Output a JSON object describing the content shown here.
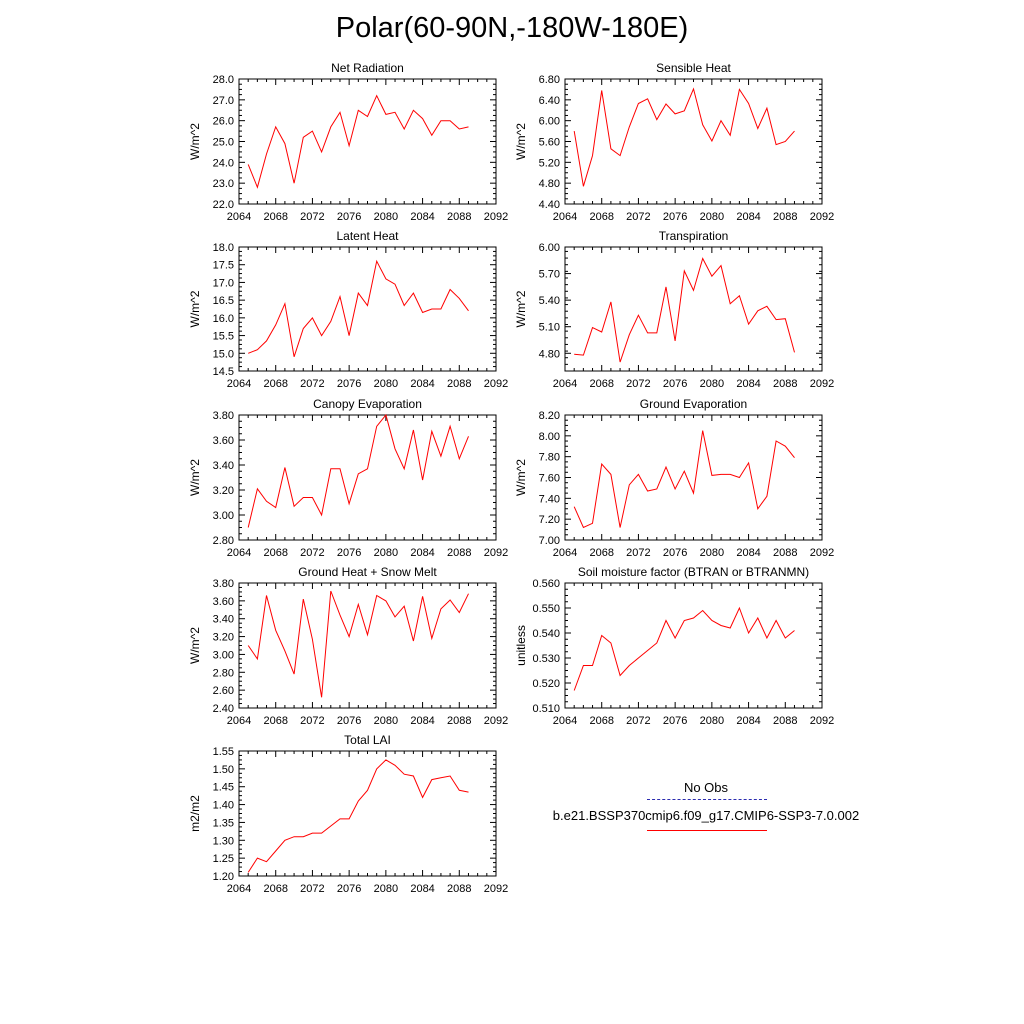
{
  "title": "Polar(60-90N,-180W-180E)",
  "legend": {
    "obs_label": "No Obs",
    "obs_color": "#2b2bb0",
    "case_label": "b.e21.BSSP370cmip6.f09_g17.CMIP6-SSP3-7.0.002",
    "case_color": "#ff0000"
  },
  "chart_data": [
    {
      "type": "line",
      "title": "Net Radiation",
      "ylabel": "W/m^2",
      "xlim": [
        2064,
        2092
      ],
      "ylim": [
        22.0,
        28.0
      ],
      "xticks": [
        "2064",
        "2068",
        "2072",
        "2076",
        "2080",
        "2084",
        "2088",
        "2092"
      ],
      "yticks": [
        "22.0",
        "23.0",
        "24.0",
        "25.0",
        "26.0",
        "27.0",
        "28.0"
      ],
      "x": [
        2065,
        2066,
        2067,
        2068,
        2069,
        2070,
        2071,
        2072,
        2073,
        2074,
        2075,
        2076,
        2077,
        2078,
        2079,
        2080,
        2081,
        2082,
        2083,
        2084,
        2085,
        2086,
        2087,
        2088,
        2089
      ],
      "values": [
        23.9,
        22.8,
        24.4,
        25.7,
        24.9,
        23.0,
        25.2,
        25.5,
        24.5,
        25.7,
        26.4,
        24.8,
        26.5,
        26.2,
        27.2,
        26.3,
        26.4,
        25.6,
        26.5,
        26.1,
        25.3,
        26.0,
        26.0,
        25.6,
        25.7
      ]
    },
    {
      "type": "line",
      "title": "Sensible Heat",
      "ylabel": "W/m^2",
      "xlim": [
        2064,
        2092
      ],
      "ylim": [
        4.4,
        6.8
      ],
      "xticks": [
        "2064",
        "2068",
        "2072",
        "2076",
        "2080",
        "2084",
        "2088",
        "2092"
      ],
      "yticks": [
        "4.40",
        "4.80",
        "5.20",
        "5.60",
        "6.00",
        "6.40",
        "6.80"
      ],
      "x": [
        2065,
        2066,
        2067,
        2068,
        2069,
        2070,
        2071,
        2072,
        2073,
        2074,
        2075,
        2076,
        2077,
        2078,
        2079,
        2080,
        2081,
        2082,
        2083,
        2084,
        2085,
        2086,
        2087,
        2088,
        2089
      ],
      "values": [
        5.8,
        4.74,
        5.33,
        6.58,
        5.46,
        5.33,
        5.88,
        6.33,
        6.42,
        6.02,
        6.32,
        6.13,
        6.19,
        6.61,
        5.92,
        5.61,
        6.0,
        5.72,
        6.6,
        6.33,
        5.85,
        6.24,
        5.54,
        5.6,
        5.8
      ]
    },
    {
      "type": "line",
      "title": "Latent Heat",
      "ylabel": "W/m^2",
      "xlim": [
        2064,
        2092
      ],
      "ylim": [
        14.5,
        18.0
      ],
      "xticks": [
        "2064",
        "2068",
        "2072",
        "2076",
        "2080",
        "2084",
        "2088",
        "2092"
      ],
      "yticks": [
        "14.5",
        "15.0",
        "15.5",
        "16.0",
        "16.5",
        "17.0",
        "17.5",
        "18.0"
      ],
      "x": [
        2065,
        2066,
        2067,
        2068,
        2069,
        2070,
        2071,
        2072,
        2073,
        2074,
        2075,
        2076,
        2077,
        2078,
        2079,
        2080,
        2081,
        2082,
        2083,
        2084,
        2085,
        2086,
        2087,
        2088,
        2089
      ],
      "values": [
        15.0,
        15.1,
        15.35,
        15.8,
        16.4,
        14.9,
        15.7,
        16.0,
        15.5,
        15.9,
        16.6,
        15.5,
        16.7,
        16.35,
        17.6,
        17.1,
        16.95,
        16.35,
        16.7,
        16.15,
        16.25,
        16.25,
        16.8,
        16.55,
        16.2
      ]
    },
    {
      "type": "line",
      "title": "Transpiration",
      "ylabel": "W/m^2",
      "xlim": [
        2064,
        2092
      ],
      "ylim": [
        4.6,
        6.0
      ],
      "xticks": [
        "2064",
        "2068",
        "2072",
        "2076",
        "2080",
        "2084",
        "2088",
        "2092"
      ],
      "yticks": [
        "4.80",
        "5.10",
        "5.40",
        "5.70",
        "6.00"
      ],
      "x": [
        2065,
        2066,
        2067,
        2068,
        2069,
        2070,
        2071,
        2072,
        2073,
        2074,
        2075,
        2076,
        2077,
        2078,
        2079,
        2080,
        2081,
        2082,
        2083,
        2084,
        2085,
        2086,
        2087,
        2088,
        2089
      ],
      "values": [
        4.79,
        4.78,
        5.09,
        5.04,
        5.38,
        4.7,
        5.01,
        5.23,
        5.03,
        5.03,
        5.55,
        4.94,
        5.73,
        5.51,
        5.87,
        5.67,
        5.79,
        5.36,
        5.45,
        5.13,
        5.28,
        5.33,
        5.18,
        5.19,
        4.81
      ]
    },
    {
      "type": "line",
      "title": "Canopy Evaporation",
      "ylabel": "W/m^2",
      "xlim": [
        2064,
        2092
      ],
      "ylim": [
        2.8,
        3.8
      ],
      "xticks": [
        "2064",
        "2068",
        "2072",
        "2076",
        "2080",
        "2084",
        "2088",
        "2092"
      ],
      "yticks": [
        "2.80",
        "3.00",
        "3.20",
        "3.40",
        "3.60",
        "3.80"
      ],
      "x": [
        2065,
        2066,
        2067,
        2068,
        2069,
        2070,
        2071,
        2072,
        2073,
        2074,
        2075,
        2076,
        2077,
        2078,
        2079,
        2080,
        2081,
        2082,
        2083,
        2084,
        2085,
        2086,
        2087,
        2088,
        2089
      ],
      "values": [
        2.9,
        3.21,
        3.11,
        3.06,
        3.38,
        3.07,
        3.14,
        3.14,
        3.0,
        3.37,
        3.37,
        3.09,
        3.33,
        3.37,
        3.71,
        3.8,
        3.53,
        3.37,
        3.68,
        3.28,
        3.67,
        3.47,
        3.71,
        3.45,
        3.63
      ]
    },
    {
      "type": "line",
      "title": "Ground Evaporation",
      "ylabel": "W/m^2",
      "xlim": [
        2064,
        2092
      ],
      "ylim": [
        7.0,
        8.2
      ],
      "xticks": [
        "2064",
        "2068",
        "2072",
        "2076",
        "2080",
        "2084",
        "2088",
        "2092"
      ],
      "yticks": [
        "7.00",
        "7.20",
        "7.40",
        "7.60",
        "7.80",
        "8.00",
        "8.20"
      ],
      "x": [
        2065,
        2066,
        2067,
        2068,
        2069,
        2070,
        2071,
        2072,
        2073,
        2074,
        2075,
        2076,
        2077,
        2078,
        2079,
        2080,
        2081,
        2082,
        2083,
        2084,
        2085,
        2086,
        2087,
        2088,
        2089
      ],
      "values": [
        7.32,
        7.12,
        7.16,
        7.73,
        7.63,
        7.12,
        7.53,
        7.63,
        7.47,
        7.49,
        7.7,
        7.49,
        7.66,
        7.45,
        8.05,
        7.62,
        7.63,
        7.63,
        7.6,
        7.74,
        7.3,
        7.42,
        7.95,
        7.9,
        7.79
      ]
    },
    {
      "type": "line",
      "title": "Ground Heat + Snow Melt",
      "ylabel": "W/m^2",
      "xlim": [
        2064,
        2092
      ],
      "ylim": [
        2.4,
        3.8
      ],
      "xticks": [
        "2064",
        "2068",
        "2072",
        "2076",
        "2080",
        "2084",
        "2088",
        "2092"
      ],
      "yticks": [
        "2.40",
        "2.60",
        "2.80",
        "3.00",
        "3.20",
        "3.40",
        "3.60",
        "3.80"
      ],
      "x": [
        2065,
        2066,
        2067,
        2068,
        2069,
        2070,
        2071,
        2072,
        2073,
        2074,
        2075,
        2076,
        2077,
        2078,
        2079,
        2080,
        2081,
        2082,
        2083,
        2084,
        2085,
        2086,
        2087,
        2088,
        2089
      ],
      "values": [
        3.1,
        2.95,
        3.66,
        3.27,
        3.04,
        2.78,
        3.62,
        3.17,
        2.52,
        3.71,
        3.44,
        3.2,
        3.56,
        3.22,
        3.66,
        3.6,
        3.42,
        3.54,
        3.15,
        3.65,
        3.18,
        3.51,
        3.61,
        3.47,
        3.68
      ]
    },
    {
      "type": "line",
      "title": "Soil moisture factor (BTRAN or BTRANMN)",
      "ylabel": "unitless",
      "xlim": [
        2064,
        2092
      ],
      "ylim": [
        0.51,
        0.56
      ],
      "xticks": [
        "2064",
        "2068",
        "2072",
        "2076",
        "2080",
        "2084",
        "2088",
        "2092"
      ],
      "yticks": [
        "0.510",
        "0.520",
        "0.530",
        "0.540",
        "0.550",
        "0.560"
      ],
      "x": [
        2065,
        2066,
        2067,
        2068,
        2069,
        2070,
        2071,
        2072,
        2073,
        2074,
        2075,
        2076,
        2077,
        2078,
        2079,
        2080,
        2081,
        2082,
        2083,
        2084,
        2085,
        2086,
        2087,
        2088,
        2089
      ],
      "values": [
        0.517,
        0.527,
        0.527,
        0.539,
        0.536,
        0.523,
        0.527,
        0.53,
        0.533,
        0.536,
        0.545,
        0.538,
        0.545,
        0.546,
        0.549,
        0.545,
        0.543,
        0.542,
        0.55,
        0.54,
        0.546,
        0.538,
        0.545,
        0.538,
        0.541
      ]
    },
    {
      "type": "line",
      "title": "Total LAI",
      "ylabel": "m2/m2",
      "xlim": [
        2064,
        2092
      ],
      "ylim": [
        1.2,
        1.55
      ],
      "xticks": [
        "2064",
        "2068",
        "2072",
        "2076",
        "2080",
        "2084",
        "2088",
        "2092"
      ],
      "yticks": [
        "1.20",
        "1.25",
        "1.30",
        "1.35",
        "1.40",
        "1.45",
        "1.50",
        "1.55"
      ],
      "x": [
        2065,
        2066,
        2067,
        2068,
        2069,
        2070,
        2071,
        2072,
        2073,
        2074,
        2075,
        2076,
        2077,
        2078,
        2079,
        2080,
        2081,
        2082,
        2083,
        2084,
        2085,
        2086,
        2087,
        2088,
        2089
      ],
      "values": [
        1.21,
        1.25,
        1.24,
        1.27,
        1.3,
        1.31,
        1.31,
        1.32,
        1.32,
        1.34,
        1.36,
        1.36,
        1.41,
        1.44,
        1.5,
        1.525,
        1.51,
        1.485,
        1.48,
        1.42,
        1.47,
        1.475,
        1.48,
        1.44,
        1.435
      ]
    }
  ]
}
